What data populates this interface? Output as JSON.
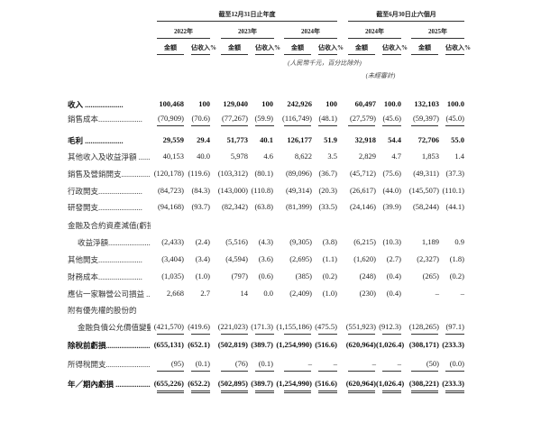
{
  "header": {
    "group_year": "截至12月31日止年度",
    "group_half": "截至6月30日止六個月",
    "years": [
      "2022年",
      "2023年",
      "2024年",
      "2024年",
      "2025年"
    ],
    "amount_label": "金額",
    "pct_label": "佔收入%",
    "unit_note": "(人民幣千元，百分比除外)",
    "unaudited_note": "(未經審計)"
  },
  "rows": [
    {
      "label": "收入 ....................",
      "bold": true,
      "values": [
        "100,468",
        "100",
        "129,040",
        "100",
        "242,926",
        "100",
        "60,497",
        "100.0",
        "132,103",
        "100.0"
      ]
    },
    {
      "label": "銷售成本.......................",
      "values": [
        "(70,909)",
        "(70.6)",
        "(77,267)",
        "(59.9)",
        "(116,749)",
        "(48.1)",
        "(27,579)",
        "(45.6)",
        "(59,397)",
        "(45.0)"
      ],
      "underline": "single"
    },
    {
      "label": "毛利 ....................",
      "bold": true,
      "values": [
        "29,559",
        "29.4",
        "51,773",
        "40.1",
        "126,177",
        "51.9",
        "32,918",
        "54.4",
        "72,706",
        "55.0"
      ]
    },
    {
      "label": "其他收入及收益淨額 ..........",
      "values": [
        "40,153",
        "40.0",
        "5,978",
        "4.6",
        "8,622",
        "3.5",
        "2,829",
        "4.7",
        "1,853",
        "1.4"
      ]
    },
    {
      "label": "銷售及營銷開支.......................",
      "values": [
        "(120,178)",
        "(119.6)",
        "(103,312)",
        "(80.1)",
        "(89,096)",
        "(36.7)",
        "(45,712)",
        "(75.6)",
        "(49,311)",
        "(37.3)"
      ]
    },
    {
      "label": "行政開支.......................",
      "values": [
        "(84,723)",
        "(84.3)",
        "(143,000)",
        "(110.8)",
        "(49,314)",
        "(20.3)",
        "(26,617)",
        "(44.0)",
        "(145,507)",
        "(110.1)"
      ]
    },
    {
      "label": "研發開支.......................",
      "values": [
        "(94,168)",
        "(93.7)",
        "(82,342)",
        "(63.8)",
        "(81,399)",
        "(33.5)",
        "(24,146)",
        "(39.9)",
        "(58,244)",
        "(44.1)"
      ]
    },
    {
      "label": "金融及合約資產減值(虧損)／",
      "values": []
    },
    {
      "label": "收益淨額.......................",
      "indent": true,
      "values": [
        "(2,433)",
        "(2.4)",
        "(5,516)",
        "(4.3)",
        "(9,305)",
        "(3.8)",
        "(6,215)",
        "(10.3)",
        "1,189",
        "0.9"
      ]
    },
    {
      "label": "其他開支.......................",
      "values": [
        "(3,404)",
        "(3.4)",
        "(4,594)",
        "(3.6)",
        "(2,695)",
        "(1.1)",
        "(1,620)",
        "(2.7)",
        "(2,327)",
        "(1.8)"
      ]
    },
    {
      "label": "財務成本.......................",
      "values": [
        "(1,035)",
        "(1.0)",
        "(797)",
        "(0.6)",
        "(385)",
        "(0.2)",
        "(248)",
        "(0.4)",
        "(265)",
        "(0.2)"
      ]
    },
    {
      "label": "應佔一家聯營公司損益 ........",
      "values": [
        "2,668",
        "2.7",
        "14",
        "0.0",
        "(2,409)",
        "(1.0)",
        "(230)",
        "(0.4)",
        "–",
        "–"
      ]
    },
    {
      "label": "附有優先權的股份的",
      "values": []
    },
    {
      "label": "金融負債公允價值變動.......",
      "indent": true,
      "values": [
        "(421,570)",
        "(419.6)",
        "(221,023)",
        "(171.3)",
        "(1,155,186)",
        "(475.5)",
        "(551,923)",
        "(912.3)",
        "(128,265)",
        "(97.1)"
      ],
      "underline": "single"
    },
    {
      "label": "除稅前虧損.......................",
      "bold": true,
      "values": [
        "(655,131)",
        "(652.1)",
        "(502,819)",
        "(389.7)",
        "(1,254,990)",
        "(516.6)",
        "(620,964)",
        "(1,026.4)",
        "(308,171)",
        "(233.3)"
      ]
    },
    {
      "label": "所得稅開支.......................",
      "values": [
        "(95)",
        "(0.1)",
        "(76)",
        "(0.1)",
        "–",
        "–",
        "–",
        "–",
        "(50)",
        "(0.0)"
      ],
      "underline": "single"
    },
    {
      "label": "年／期內虧損 ....................",
      "bold": true,
      "values": [
        "(655,226)",
        "(652.2)",
        "(502,895)",
        "(389.7)",
        "(1,254,990)",
        "(516.6)",
        "(620,964)",
        "(1,026.4)",
        "(308,221)",
        "(233.3)"
      ],
      "underline": "double"
    }
  ]
}
